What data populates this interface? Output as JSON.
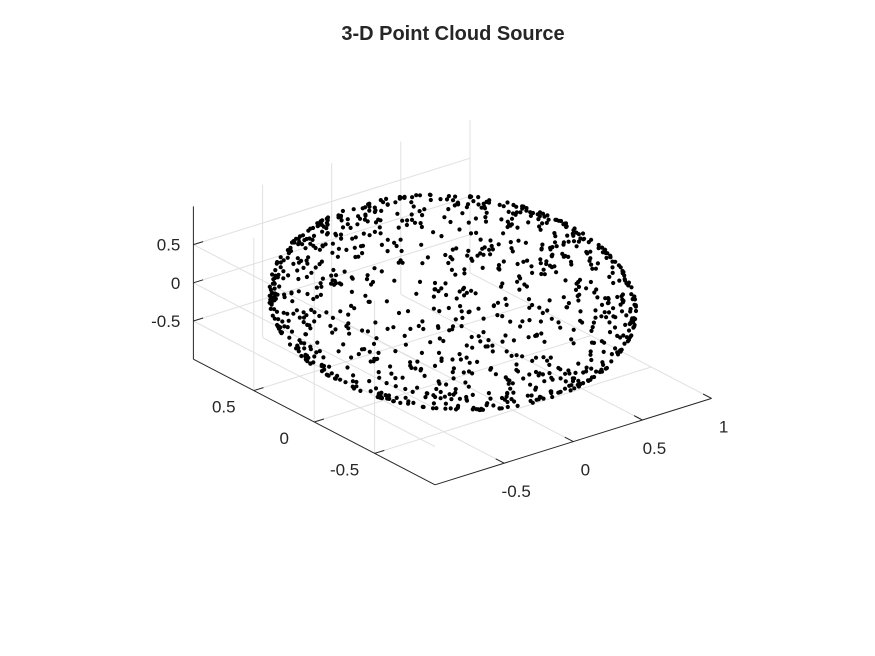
{
  "chart_data": {
    "type": "scatter",
    "subtype": "scatter3",
    "title": "3-D Point Cloud Source",
    "xlabel": "",
    "ylabel": "",
    "zlabel": "",
    "grid": true,
    "xlim": [
      -1,
      1
    ],
    "ylim": [
      -1,
      1
    ],
    "zlim": [
      -1,
      1
    ],
    "x_ticks": [
      -0.5,
      0,
      0.5,
      1
    ],
    "x_tick_labels": [
      "-0.5",
      "0",
      "0.5",
      "1"
    ],
    "y_ticks": [
      -0.5,
      0,
      0.5
    ],
    "y_tick_labels": [
      "-0.5",
      "0",
      "0.5"
    ],
    "z_ticks": [
      -0.5,
      0,
      0.5
    ],
    "z_tick_labels": [
      "-0.5",
      "0",
      "0.5"
    ],
    "marker_color": "#000000",
    "points": {
      "shape": "unit sphere surface",
      "count": 1000,
      "center": [
        0,
        0,
        0
      ],
      "radius": 1
    }
  }
}
